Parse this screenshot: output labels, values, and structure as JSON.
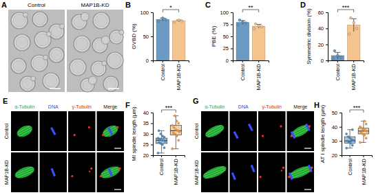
{
  "chart_data": [
    {
      "panel": "B",
      "type": "bar",
      "ylabel": "GVBD (%)",
      "categories": [
        "Control",
        "MAP1B-KD"
      ],
      "values": [
        85,
        82
      ],
      "error": [
        3,
        2
      ],
      "points": [
        [
          82,
          85,
          88
        ],
        [
          80,
          82,
          84
        ]
      ],
      "colors": [
        "#6b9bc3",
        "#f5c48f"
      ],
      "ylim": [
        0,
        100
      ],
      "yticks": [
        0,
        50,
        100
      ],
      "annotation": "*"
    },
    {
      "panel": "C",
      "type": "bar",
      "ylabel": "PBE (%)",
      "categories": [
        "Control",
        "MAP1B-KD"
      ],
      "values": [
        79,
        71
      ],
      "error": [
        4,
        4
      ],
      "points": [
        [
          74,
          78,
          80,
          84
        ],
        [
          66,
          70,
          72,
          76
        ]
      ],
      "colors": [
        "#6b9bc3",
        "#f5c48f"
      ],
      "ylim": [
        0,
        100
      ],
      "yticks": [
        0,
        25,
        50,
        75,
        100
      ],
      "annotation": "**"
    },
    {
      "panel": "D",
      "type": "bar",
      "ylabel": "Symmetric division (%)",
      "categories": [
        "Control",
        "MAP1B-KD"
      ],
      "values": [
        6,
        44
      ],
      "error": [
        4,
        8
      ],
      "points": [
        [
          2,
          4,
          6,
          12
        ],
        [
          33,
          40,
          47,
          53
        ]
      ],
      "colors": [
        "#6b9bc3",
        "#f5c48f"
      ],
      "ylim": [
        0,
        60
      ],
      "yticks": [
        0,
        20,
        40,
        60
      ],
      "annotation": "***"
    },
    {
      "panel": "F",
      "type": "box",
      "ylabel": "MI spindle length (µm)",
      "categories": [
        "Control",
        "MAP1B-KD"
      ],
      "stats": [
        {
          "min": 21,
          "q1": 25.5,
          "median": 27,
          "q3": 28,
          "max": 31.5
        },
        {
          "min": 23,
          "q1": 29.5,
          "median": 31.5,
          "q3": 34,
          "max": 38.5
        }
      ],
      "points": [
        [
          21,
          23.5,
          25,
          25.5,
          26,
          26.5,
          27,
          27,
          27.5,
          28,
          28.5,
          29,
          30,
          31.5
        ],
        [
          23,
          27,
          29,
          30,
          30.5,
          31,
          31.5,
          32,
          33,
          34,
          35,
          36,
          38.5
        ]
      ],
      "colors": [
        "#4f8cc0",
        "#eb9b45"
      ],
      "ylim": [
        20,
        40
      ],
      "yticks": [
        20,
        25,
        30,
        35,
        40
      ],
      "annotation": "***"
    },
    {
      "panel": "H",
      "type": "box",
      "ylabel": "AT I spindle length (µm)",
      "categories": [
        "Control",
        "MAP1B-KD"
      ],
      "stats": [
        {
          "min": 25,
          "q1": 28.5,
          "median": 30,
          "q3": 33,
          "max": 38
        },
        {
          "min": 29,
          "q1": 35,
          "median": 37,
          "q3": 39,
          "max": 44
        }
      ],
      "points": [
        [
          25,
          27,
          28.5,
          29,
          30,
          30.5,
          31,
          32,
          33,
          35,
          38
        ],
        [
          29,
          32,
          34,
          35,
          36,
          37,
          37.5,
          38,
          39,
          40,
          42,
          44
        ]
      ],
      "colors": [
        "#4f8cc0",
        "#eb9b45"
      ],
      "ylim": [
        20,
        50
      ],
      "yticks": [
        20,
        30,
        40,
        50
      ],
      "annotation": "***"
    }
  ],
  "images": [
    {
      "panel": "A",
      "columns": [
        "Control",
        "MAP1B-KD"
      ]
    },
    {
      "panel": "E",
      "columns": [
        "α-Tubulin",
        "DNA",
        "γ-Tubulin",
        "Merge"
      ],
      "rows": [
        "Control",
        "MAP1B-KD"
      ]
    },
    {
      "panel": "G",
      "columns": [
        "α-Tubulin",
        "DNA",
        "γ-Tubulin",
        "Merge"
      ],
      "rows": [
        "Control",
        "MAP1B-KD"
      ]
    }
  ]
}
